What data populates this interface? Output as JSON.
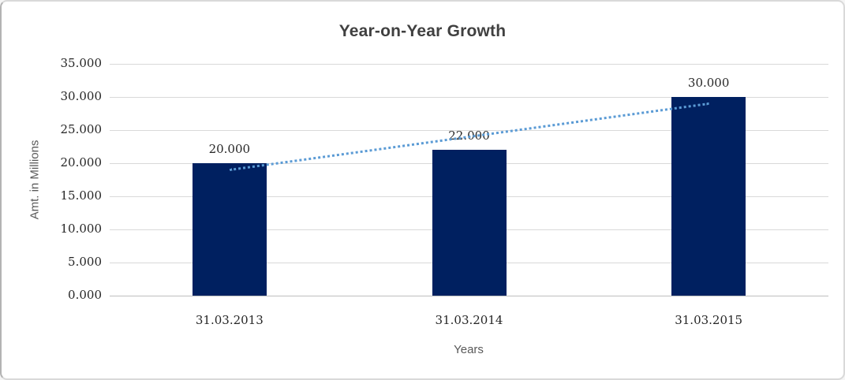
{
  "window": {
    "background": "#ffffff",
    "border_color": "#d9d9d9"
  },
  "chart_data": {
    "type": "bar",
    "title": "Year-on-Year Growth",
    "xlabel": "Years",
    "ylabel": "Amt. in Millions",
    "categories": [
      "31.03.2013",
      "31.03.2014",
      "31.03.2015"
    ],
    "series": [
      {
        "name": "Amt. in Millions",
        "values": [
          20000,
          22000,
          30000
        ],
        "data_labels": [
          "20.000",
          "22.000",
          "30.000"
        ],
        "color": "#002060"
      }
    ],
    "y_ticks": [
      {
        "value": 0,
        "label": "0.000"
      },
      {
        "value": 5000,
        "label": "5.000"
      },
      {
        "value": 10000,
        "label": "10.000"
      },
      {
        "value": 15000,
        "label": "15.000"
      },
      {
        "value": 20000,
        "label": "20.000"
      },
      {
        "value": 25000,
        "label": "25.000"
      },
      {
        "value": 30000,
        "label": "30.000"
      },
      {
        "value": 35000,
        "label": "35.000"
      }
    ],
    "ylim": [
      0,
      35000
    ],
    "grid": true,
    "gridline_color": "#d9d9d9",
    "axis_line_color": "#bfbfbf",
    "legend": "none",
    "trendline": {
      "type": "linear",
      "style": "dotted",
      "color": "#5b9bd5",
      "start_value": 19000,
      "end_value": 29000
    }
  }
}
